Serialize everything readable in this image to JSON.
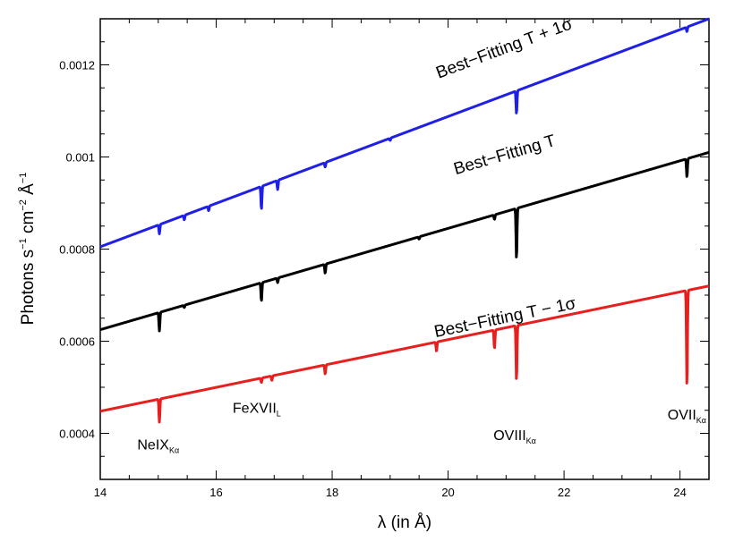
{
  "chart_data": {
    "type": "line",
    "title": "",
    "xlabel": "λ (in Å)",
    "ylabel": {
      "base": "Photons s",
      "exp1": "−1",
      "unit2": " cm",
      "exp2": "−2",
      "unit3": " Å",
      "exp3": "−1"
    },
    "xlim": [
      14,
      24.5
    ],
    "ylim": [
      0.0003,
      0.0013
    ],
    "x_ticks": [
      14,
      16,
      18,
      20,
      22,
      24
    ],
    "x_tick_labels": [
      "14",
      "16",
      "18",
      "20",
      "22",
      "24"
    ],
    "y_ticks": [
      0.0004,
      0.0006,
      0.0008,
      0.001,
      0.0012
    ],
    "y_tick_labels": [
      "0.0004",
      "0.0006",
      "0.0008",
      "0.001",
      "0.0012"
    ],
    "grid": false,
    "series": [
      {
        "name": "Best-Fitting T + 1σ",
        "color": "#1f1fe6",
        "start": [
          14,
          0.000805
        ],
        "end": [
          24.5,
          0.0013
        ],
        "dips": [
          [
            15.02,
            2e-05
          ],
          [
            15.45,
            1e-05
          ],
          [
            15.87,
            1e-05
          ],
          [
            16.78,
            5e-05
          ],
          [
            17.06,
            2e-05
          ],
          [
            17.88,
            1e-05
          ],
          [
            19.0,
            5e-06
          ],
          [
            21.18,
            5e-05
          ],
          [
            24.12,
            1e-05
          ]
        ]
      },
      {
        "name": "Best-Fitting T",
        "color": "#000000",
        "start": [
          14,
          0.000625
        ],
        "end": [
          24.5,
          0.00101
        ],
        "dips": [
          [
            15.02,
            4e-05
          ],
          [
            15.45,
            5e-06
          ],
          [
            16.78,
            4e-05
          ],
          [
            17.06,
            1e-05
          ],
          [
            17.88,
            2e-05
          ],
          [
            19.5,
            5e-06
          ],
          [
            20.8,
            1e-05
          ],
          [
            21.18,
            0.00011
          ],
          [
            24.12,
            4e-05
          ]
        ]
      },
      {
        "name": "Best-Fitting T − 1σ",
        "color": "#e61f1f",
        "start": [
          14,
          0.000448
        ],
        "end": [
          24.5,
          0.00072
        ],
        "dips": [
          [
            15.02,
            5e-05
          ],
          [
            16.78,
            1e-05
          ],
          [
            16.96,
            1e-05
          ],
          [
            17.88,
            2e-05
          ],
          [
            19.8,
            2e-05
          ],
          [
            20.8,
            4e-05
          ],
          [
            21.18,
            0.00012
          ],
          [
            24.12,
            0.00021
          ]
        ]
      }
    ],
    "series_labels": [
      {
        "text": "Best−Fitting T + 1σ",
        "x": 21.0,
        "y": 0.001225
      },
      {
        "text": "Best−Fitting T",
        "x": 21.0,
        "y": 0.0009935
      },
      {
        "text": "Best−Fitting T − 1σ",
        "x": 21.0,
        "y": 0.00064
      }
    ],
    "annotations": [
      {
        "base": "NeIX",
        "sub": "Kα",
        "x": 15.0,
        "y": 0.000365
      },
      {
        "base": "FeXVII",
        "sub": "L",
        "x": 16.7,
        "y": 0.000445
      },
      {
        "base": "OVIII",
        "sub": "Kα",
        "x": 21.15,
        "y": 0.000385
      },
      {
        "base": "OVII",
        "sub": "Kα",
        "x": 24.12,
        "y": 0.00043
      }
    ]
  }
}
